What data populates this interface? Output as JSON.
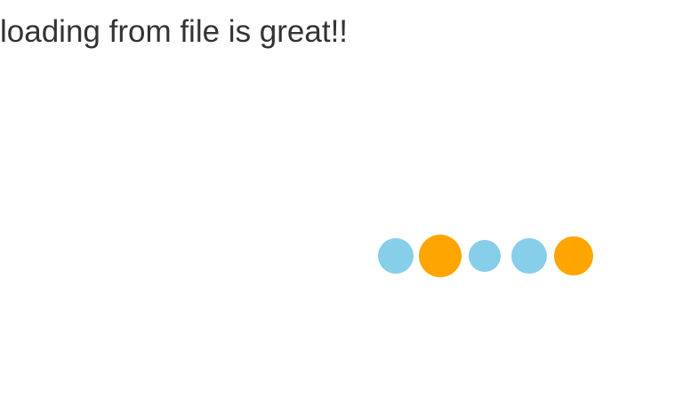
{
  "page": {
    "message": "loading from file is great!!"
  },
  "loader": {
    "dots": [
      {
        "color": "#87CEEB",
        "icon": "blue-circle"
      },
      {
        "color": "#FFA500",
        "icon": "orange-circle"
      },
      {
        "color": "#87CEEB",
        "icon": "blue-circle"
      },
      {
        "color": "#87CEEB",
        "icon": "blue-circle"
      },
      {
        "color": "#FFA500",
        "icon": "orange-circle"
      }
    ]
  }
}
